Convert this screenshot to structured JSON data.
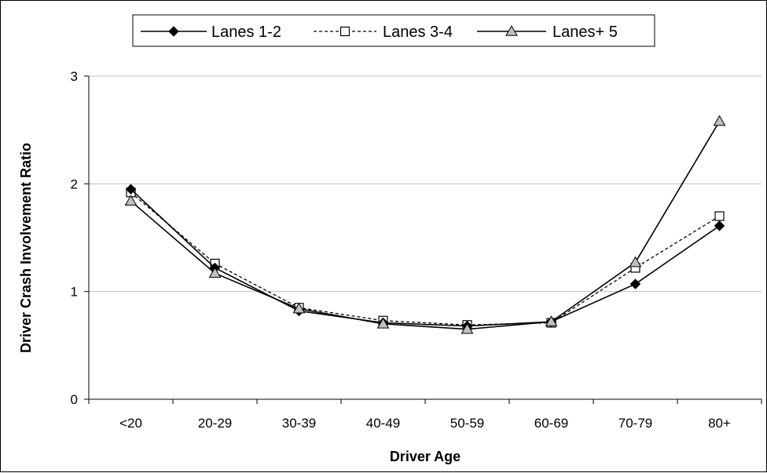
{
  "chart_data": {
    "type": "line",
    "title": "",
    "xlabel": "Driver Age",
    "ylabel": "Driver Crash Involvement Ratio",
    "categories": [
      "<20",
      "20-29",
      "30-39",
      "40-49",
      "50-59",
      "60-69",
      "70-79",
      "80+"
    ],
    "ylim": [
      0,
      3
    ],
    "yticks": [
      "0",
      "1",
      "2",
      "3"
    ],
    "grid": "horizontal",
    "legend_position": "top",
    "series": [
      {
        "name": "Lanes 1-2",
        "marker": "filled-diamond",
        "line": "solid",
        "color": "#000000",
        "values": [
          1.95,
          1.22,
          0.82,
          0.71,
          0.68,
          0.72,
          1.07,
          1.61
        ]
      },
      {
        "name": "Lanes 3-4",
        "marker": "open-square",
        "line": "dotted",
        "color": "#000000",
        "values": [
          1.92,
          1.26,
          0.85,
          0.73,
          0.69,
          0.71,
          1.22,
          1.7
        ]
      },
      {
        "name": "Lanes+ 5",
        "marker": "gray-triangle",
        "line": "solid",
        "color": "#000000",
        "values": [
          1.84,
          1.17,
          0.84,
          0.7,
          0.65,
          0.72,
          1.27,
          2.58
        ]
      }
    ]
  }
}
